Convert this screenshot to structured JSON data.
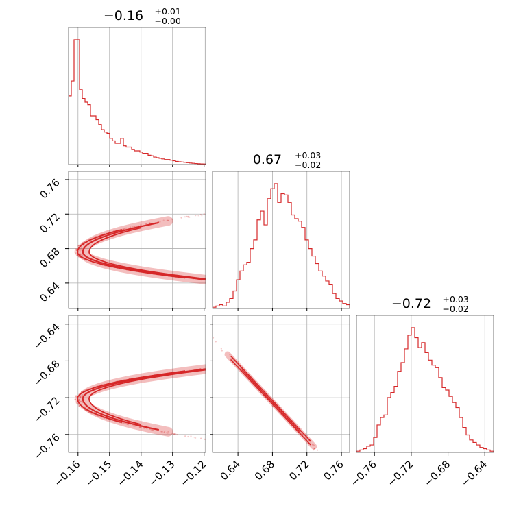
{
  "chart_data": {
    "type": "corner",
    "color": "#d62728",
    "parameters": [
      {
        "title": {
          "value": "−0.16",
          "sup": "+0.01",
          "sub": "−0.00"
        },
        "range": [
          -0.163,
          -0.1195
        ],
        "ticks": [
          -0.16,
          -0.15,
          -0.14,
          -0.13,
          -0.12
        ],
        "tick_labels": [
          "−0.16",
          "−0.15",
          "−0.14",
          "−0.13",
          "−0.12"
        ],
        "hist": [
          0.55,
          0.67,
          1.0,
          1.0,
          0.6,
          0.53,
          0.5,
          0.48,
          0.39,
          0.39,
          0.36,
          0.32,
          0.28,
          0.26,
          0.25,
          0.21,
          0.19,
          0.17,
          0.17,
          0.21,
          0.15,
          0.14,
          0.14,
          0.12,
          0.11,
          0.11,
          0.1,
          0.09,
          0.09,
          0.075,
          0.07,
          0.06,
          0.055,
          0.05,
          0.045,
          0.04,
          0.04,
          0.035,
          0.03,
          0.025,
          0.022,
          0.02,
          0.018,
          0.015,
          0.012,
          0.01,
          0.008,
          0.006,
          0.005,
          0.004
        ]
      },
      {
        "title": {
          "value": "0.67",
          "sup": "+0.03",
          "sub": "−0.02"
        },
        "range": [
          0.6105,
          0.7695
        ],
        "ticks": [
          0.64,
          0.68,
          0.72,
          0.76
        ],
        "tick_labels": [
          "0.64",
          "0.68",
          "0.72",
          "0.76"
        ],
        "hist": [
          0.01,
          0.02,
          0.03,
          0.02,
          0.05,
          0.08,
          0.14,
          0.23,
          0.3,
          0.35,
          0.37,
          0.48,
          0.55,
          0.71,
          0.78,
          0.67,
          0.88,
          0.96,
          1.0,
          0.85,
          0.92,
          0.91,
          0.85,
          0.75,
          0.72,
          0.7,
          0.65,
          0.55,
          0.48,
          0.42,
          0.36,
          0.3,
          0.26,
          0.22,
          0.19,
          0.12,
          0.08,
          0.06,
          0.04,
          0.03
        ]
      },
      {
        "title": {
          "value": "−0.72",
          "sup": "+0.03",
          "sub": "−0.02"
        },
        "range": [
          -0.7795,
          -0.6305
        ],
        "ticks": [
          -0.76,
          -0.72,
          -0.68,
          -0.64
        ],
        "tick_labels": [
          "−0.76",
          "−0.72",
          "−0.68",
          "−0.64"
        ],
        "hist": [
          0.01,
          0.02,
          0.03,
          0.05,
          0.06,
          0.12,
          0.22,
          0.28,
          0.3,
          0.44,
          0.48,
          0.53,
          0.65,
          0.72,
          0.83,
          0.94,
          1.0,
          0.92,
          0.84,
          0.88,
          0.8,
          0.74,
          0.7,
          0.68,
          0.6,
          0.52,
          0.5,
          0.45,
          0.4,
          0.36,
          0.28,
          0.2,
          0.14,
          0.1,
          0.08,
          0.06,
          0.04,
          0.03,
          0.02,
          0.01
        ]
      }
    ],
    "grid": true
  }
}
